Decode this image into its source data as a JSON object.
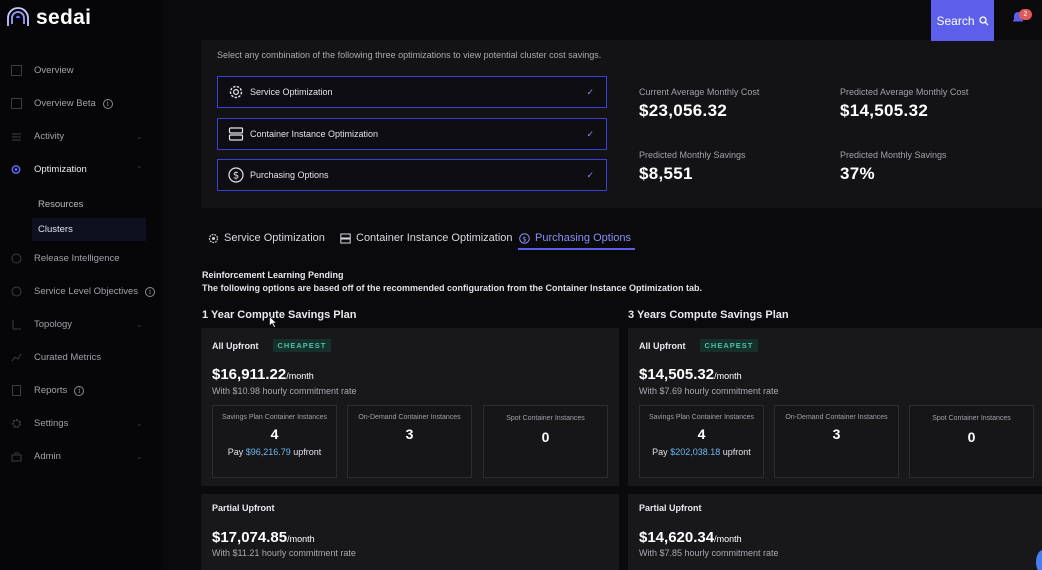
{
  "app": {
    "name": "sedai"
  },
  "header": {
    "search_label": "Search",
    "notification_count": "2"
  },
  "sidebar": {
    "items": [
      {
        "label": "Overview",
        "icon": "overview-icon"
      },
      {
        "label": "Overview Beta",
        "icon": "overview-beta-icon",
        "info": true
      },
      {
        "label": "Activity",
        "icon": "activity-icon",
        "chevron": true
      },
      {
        "label": "Optimization",
        "icon": "optimization-icon",
        "chevron": true,
        "active": true
      },
      {
        "label": "Release Intelligence",
        "icon": "release-icon"
      },
      {
        "label": "Service Level Objectives",
        "icon": "slo-icon",
        "info": true
      },
      {
        "label": "Topology",
        "icon": "topology-icon",
        "chevron": true
      },
      {
        "label": "Curated Metrics",
        "icon": "metrics-icon"
      },
      {
        "label": "Reports",
        "icon": "reports-icon",
        "info": true
      },
      {
        "label": "Settings",
        "icon": "settings-icon",
        "chevron": true
      },
      {
        "label": "Admin",
        "icon": "admin-icon",
        "chevron": true
      }
    ],
    "optimization_sub": [
      "Resources",
      "Clusters"
    ]
  },
  "summary": {
    "intro": "Select any combination of the following three optimizations to view potential cluster cost savings.",
    "options": [
      "Service Optimization",
      "Container Instance Optimization",
      "Purchasing Options"
    ],
    "metrics": {
      "current_avg_label": "Current Average Monthly Cost",
      "current_avg_value": "$23,056.32",
      "predicted_avg_label": "Predicted Average Monthly Cost",
      "predicted_avg_value": "$14,505.32",
      "pred_savings_label": "Predicted Monthly Savings",
      "pred_savings_value": "$8,551",
      "pred_savings_pct_label": "Predicted Monthly Savings",
      "pred_savings_pct_value": "37%"
    }
  },
  "tabs": [
    "Service Optimization",
    "Container Instance Optimization",
    "Purchasing Options"
  ],
  "rl": {
    "title": "Reinforcement Learning Pending",
    "desc": "The following options are based off of the recommended configuration from the Container Instance Optimization tab."
  },
  "plans": {
    "one_year_title": "1 Year Compute Savings Plan",
    "three_year_title": "3 Years Compute Savings Plan",
    "cheapest_badge": "CHEAPEST",
    "per_month": "/month",
    "one_year": {
      "all_upfront": {
        "label": "All Upfront",
        "price": "$16,911.22",
        "rate": "With $10.98 hourly commitment rate",
        "savings_label": "Savings Plan Container Instances",
        "savings_num": "4",
        "pay_prefix": "Pay",
        "pay_amount": "$96,216.79",
        "pay_suffix": "upfront",
        "ondemand_label": "On-Demand Container Instances",
        "ondemand_num": "3",
        "spot_label": "Spot Container Instances",
        "spot_num": "0"
      },
      "partial_upfront": {
        "label": "Partial Upfront",
        "price": "$17,074.85",
        "rate": "With $11.21 hourly commitment rate"
      }
    },
    "three_year": {
      "all_upfront": {
        "label": "All Upfront",
        "price": "$14,505.32",
        "rate": "With $7.69 hourly commitment rate",
        "savings_label": "Savings Plan Container Instances",
        "savings_num": "4",
        "pay_prefix": "Pay",
        "pay_amount": "$202,038.18",
        "pay_suffix": "upfront",
        "ondemand_label": "On-Demand Container Instances",
        "ondemand_num": "3",
        "spot_label": "Spot Container Instances",
        "spot_num": "0"
      },
      "partial_upfront": {
        "label": "Partial Upfront",
        "price": "$14,620.34",
        "rate": "With $7.85 hourly commitment rate"
      }
    }
  }
}
